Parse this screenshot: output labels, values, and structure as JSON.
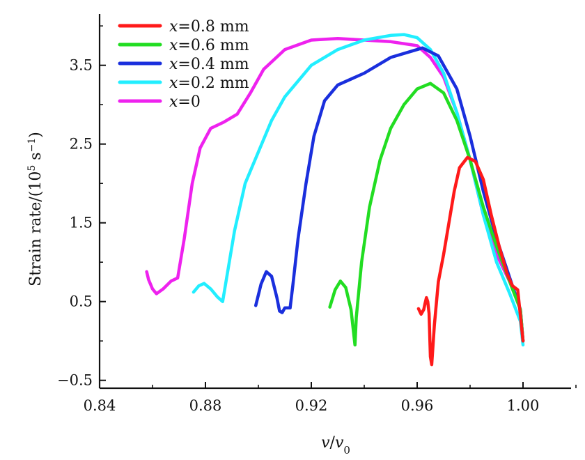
{
  "chart_data": {
    "type": "line",
    "title": "",
    "xlabel_var": "v",
    "xlabel_sep": "/",
    "xlabel_sub": "0",
    "ylabel_main": "Strain rate/(10",
    "ylabel_sup1": "5",
    "ylabel_mid": " s",
    "ylabel_sup2": "−1",
    "ylabel_end": ")",
    "xlim": [
      0.84,
      1.02
    ],
    "ylim": [
      -0.6,
      4.2
    ],
    "x_ticks": [
      0.84,
      0.88,
      0.92,
      0.96,
      1.0
    ],
    "x_tick_labels": [
      "0.84",
      "0.88",
      "0.92",
      "0.96",
      "1.00"
    ],
    "y_ticks": [
      -0.5,
      0.5,
      1.5,
      2.5,
      3.5
    ],
    "y_tick_labels": [
      "−0.5",
      "0.5",
      "1.5",
      "2.5",
      "3.5"
    ],
    "grid": false,
    "legend_position": "top-left",
    "series": [
      {
        "name": "x=0.8 mm",
        "label_var": "x",
        "label_rest": "=0.8 mm",
        "color": "#ff1a1a",
        "points": [
          [
            0.9605,
            0.41
          ],
          [
            0.9615,
            0.34
          ],
          [
            0.9625,
            0.4
          ],
          [
            0.963,
            0.48
          ],
          [
            0.9635,
            0.55
          ],
          [
            0.964,
            0.5
          ],
          [
            0.9645,
            0.35
          ],
          [
            0.965,
            -0.2
          ],
          [
            0.9655,
            -0.3
          ],
          [
            0.9665,
            0.2
          ],
          [
            0.968,
            0.75
          ],
          [
            0.97,
            1.1
          ],
          [
            0.972,
            1.5
          ],
          [
            0.974,
            1.9
          ],
          [
            0.976,
            2.2
          ],
          [
            0.979,
            2.33
          ],
          [
            0.982,
            2.28
          ],
          [
            0.985,
            2.05
          ],
          [
            0.988,
            1.6
          ],
          [
            0.991,
            1.2
          ],
          [
            0.994,
            0.85
          ],
          [
            0.996,
            0.7
          ],
          [
            0.998,
            0.65
          ],
          [
            1.0,
            0.0
          ]
        ]
      },
      {
        "name": "x=0.6 mm",
        "label_var": "x",
        "label_rest": "=0.6 mm",
        "color": "#22dd22",
        "points": [
          [
            0.927,
            0.43
          ],
          [
            0.929,
            0.65
          ],
          [
            0.931,
            0.76
          ],
          [
            0.933,
            0.68
          ],
          [
            0.935,
            0.4
          ],
          [
            0.9365,
            -0.05
          ],
          [
            0.937,
            0.3
          ],
          [
            0.939,
            1.0
          ],
          [
            0.942,
            1.7
          ],
          [
            0.946,
            2.3
          ],
          [
            0.95,
            2.7
          ],
          [
            0.955,
            3.0
          ],
          [
            0.96,
            3.2
          ],
          [
            0.965,
            3.27
          ],
          [
            0.97,
            3.15
          ],
          [
            0.975,
            2.8
          ],
          [
            0.98,
            2.3
          ],
          [
            0.985,
            1.7
          ],
          [
            0.99,
            1.2
          ],
          [
            0.995,
            0.75
          ],
          [
            0.999,
            0.4
          ],
          [
            1.0,
            0.0
          ]
        ]
      },
      {
        "name": "x=0.4 mm",
        "label_var": "x",
        "label_rest": "=0.4 mm",
        "color": "#1a2fdd",
        "points": [
          [
            0.899,
            0.45
          ],
          [
            0.901,
            0.72
          ],
          [
            0.903,
            0.88
          ],
          [
            0.905,
            0.82
          ],
          [
            0.907,
            0.55
          ],
          [
            0.908,
            0.38
          ],
          [
            0.909,
            0.36
          ],
          [
            0.91,
            0.42
          ],
          [
            0.912,
            0.42
          ],
          [
            0.913,
            0.7
          ],
          [
            0.915,
            1.3
          ],
          [
            0.918,
            2.0
          ],
          [
            0.921,
            2.6
          ],
          [
            0.925,
            3.05
          ],
          [
            0.93,
            3.25
          ],
          [
            0.94,
            3.4
          ],
          [
            0.95,
            3.6
          ],
          [
            0.962,
            3.72
          ],
          [
            0.968,
            3.62
          ],
          [
            0.975,
            3.2
          ],
          [
            0.98,
            2.6
          ],
          [
            0.985,
            1.9
          ],
          [
            0.99,
            1.3
          ],
          [
            0.995,
            0.8
          ],
          [
            0.999,
            0.4
          ],
          [
            1.0,
            0.0
          ]
        ]
      },
      {
        "name": "x=0.2 mm",
        "label_var": "x",
        "label_rest": "=0.2 mm",
        "color": "#22eeff",
        "points": [
          [
            0.8755,
            0.62
          ],
          [
            0.8775,
            0.7
          ],
          [
            0.8795,
            0.73
          ],
          [
            0.882,
            0.66
          ],
          [
            0.8845,
            0.56
          ],
          [
            0.8865,
            0.5
          ],
          [
            0.888,
            0.8
          ],
          [
            0.891,
            1.4
          ],
          [
            0.895,
            2.0
          ],
          [
            0.9,
            2.4
          ],
          [
            0.905,
            2.8
          ],
          [
            0.91,
            3.1
          ],
          [
            0.92,
            3.5
          ],
          [
            0.93,
            3.7
          ],
          [
            0.94,
            3.82
          ],
          [
            0.95,
            3.88
          ],
          [
            0.955,
            3.89
          ],
          [
            0.96,
            3.85
          ],
          [
            0.965,
            3.7
          ],
          [
            0.97,
            3.4
          ],
          [
            0.975,
            2.9
          ],
          [
            0.98,
            2.3
          ],
          [
            0.985,
            1.6
          ],
          [
            0.99,
            1.0
          ],
          [
            0.995,
            0.6
          ],
          [
            0.999,
            0.25
          ],
          [
            1.0,
            -0.05
          ]
        ]
      },
      {
        "name": "x=0",
        "label_var": "x",
        "label_rest": "=0",
        "color": "#ee22ee",
        "points": [
          [
            0.8578,
            0.88
          ],
          [
            0.8585,
            0.78
          ],
          [
            0.86,
            0.66
          ],
          [
            0.8615,
            0.6
          ],
          [
            0.864,
            0.66
          ],
          [
            0.867,
            0.76
          ],
          [
            0.8695,
            0.8
          ],
          [
            0.872,
            1.3
          ],
          [
            0.875,
            2.0
          ],
          [
            0.878,
            2.45
          ],
          [
            0.882,
            2.7
          ],
          [
            0.887,
            2.78
          ],
          [
            0.892,
            2.88
          ],
          [
            0.897,
            3.15
          ],
          [
            0.902,
            3.45
          ],
          [
            0.91,
            3.7
          ],
          [
            0.92,
            3.82
          ],
          [
            0.93,
            3.84
          ],
          [
            0.94,
            3.82
          ],
          [
            0.95,
            3.8
          ],
          [
            0.96,
            3.75
          ],
          [
            0.965,
            3.6
          ],
          [
            0.97,
            3.35
          ],
          [
            0.975,
            2.9
          ],
          [
            0.98,
            2.3
          ],
          [
            0.985,
            1.6
          ],
          [
            0.99,
            1.1
          ],
          [
            0.995,
            0.75
          ],
          [
            0.999,
            0.4
          ],
          [
            1.0,
            0.0
          ]
        ]
      }
    ]
  }
}
